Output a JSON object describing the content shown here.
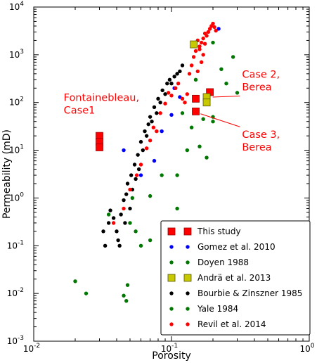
{
  "chart_data": {
    "type": "scatter",
    "xscale": "log",
    "yscale": "log",
    "xlim": [
      0.01,
      1
    ],
    "ylim": [
      0.001,
      10000
    ],
    "xlabel": "Porosity",
    "ylabel": "Permeability (mD)",
    "grid": false,
    "legend_position": "lower-right",
    "x_ticks": [
      {
        "value": 0.01,
        "label": "10",
        "exp": "-2"
      },
      {
        "value": 0.1,
        "label": "10",
        "exp": "-1"
      },
      {
        "value": 1,
        "label": "10",
        "exp": "0"
      }
    ],
    "y_ticks": [
      {
        "value": 0.001,
        "label": "10",
        "exp": "-3"
      },
      {
        "value": 0.01,
        "label": "10",
        "exp": "-2"
      },
      {
        "value": 0.1,
        "label": "10",
        "exp": "-1"
      },
      {
        "value": 1,
        "label": "10",
        "exp": "0"
      },
      {
        "value": 10,
        "label": "10",
        "exp": "1"
      },
      {
        "value": 100,
        "label": "10",
        "exp": "2"
      },
      {
        "value": 1000,
        "label": "10",
        "exp": "3"
      },
      {
        "value": 10000,
        "label": "10",
        "exp": "4"
      }
    ],
    "annotations": [
      {
        "lines": [
          "Fontainebleau,",
          "Case1"
        ],
        "color": "#ff0000",
        "anchor_x": 0.0165,
        "anchor_y": 108
      },
      {
        "lines": [
          "Case 2,",
          "Berea"
        ],
        "color": "#ff0000",
        "anchor_x": 0.325,
        "anchor_y": 330,
        "arrow_to": [
          0.19,
          130
        ]
      },
      {
        "lines": [
          "Case 3,",
          "Berea"
        ],
        "color": "#ff0000",
        "anchor_x": 0.325,
        "anchor_y": 18,
        "arrow_to": [
          0.155,
          58
        ]
      }
    ],
    "series": [
      {
        "name": "This study",
        "marker": "square",
        "color": "#ff0000",
        "edge": "#990000",
        "points": [
          [
            0.03,
            20
          ],
          [
            0.03,
            15
          ],
          [
            0.03,
            11.5
          ],
          [
            0.15,
            120
          ],
          [
            0.15,
            65
          ],
          [
            0.19,
            165
          ]
        ]
      },
      {
        "name": "Gomez et al. 2010",
        "marker": "dot",
        "color": "#0000ff",
        "points": [
          [
            0.22,
            3500
          ],
          [
            0.105,
            200
          ],
          [
            0.1,
            55
          ],
          [
            0.085,
            25
          ],
          [
            0.075,
            6
          ],
          [
            0.06,
            3
          ],
          [
            0.045,
            10
          ],
          [
            0.115,
            130
          ]
        ]
      },
      {
        "name": "Doyen 1988",
        "marker": "dot",
        "color": "#007700",
        "points": [
          [
            0.2,
            1800
          ],
          [
            0.23,
            500
          ],
          [
            0.28,
            900
          ],
          [
            0.25,
            250
          ],
          [
            0.3,
            160
          ],
          [
            0.15,
            300
          ],
          [
            0.12,
            60
          ],
          [
            0.14,
            30
          ],
          [
            0.13,
            10
          ],
          [
            0.16,
            12
          ],
          [
            0.18,
            7
          ],
          [
            0.2,
            40
          ],
          [
            0.2,
            50
          ],
          [
            0.17,
            45
          ],
          [
            0.11,
            3
          ],
          [
            0.085,
            3
          ],
          [
            0.09,
            0.3
          ],
          [
            0.07,
            0.13
          ]
        ]
      },
      {
        "name": "Andrä et al. 2013",
        "marker": "square",
        "color": "#c8c800",
        "edge": "#555500",
        "points": [
          [
            0.145,
            1650
          ],
          [
            0.18,
            130
          ],
          [
            0.18,
            100
          ]
        ]
      },
      {
        "name": "Bourbie & Zinszner 1985",
        "marker": "dot",
        "color": "#000000",
        "points": [
          [
            0.032,
            0.2
          ],
          [
            0.033,
            0.1
          ],
          [
            0.035,
            0.3
          ],
          [
            0.036,
            0.55
          ],
          [
            0.038,
            0.38
          ],
          [
            0.04,
            0.2
          ],
          [
            0.041,
            0.13
          ],
          [
            0.042,
            0.1
          ],
          [
            0.043,
            0.45
          ],
          [
            0.045,
            0.9
          ],
          [
            0.046,
            0.3
          ],
          [
            0.047,
            1.2
          ],
          [
            0.048,
            2
          ],
          [
            0.05,
            0.6
          ],
          [
            0.051,
            3
          ],
          [
            0.052,
            1.5
          ],
          [
            0.054,
            5
          ],
          [
            0.055,
            2.5
          ],
          [
            0.057,
            8
          ],
          [
            0.058,
            4
          ],
          [
            0.06,
            15
          ],
          [
            0.062,
            10
          ],
          [
            0.064,
            25
          ],
          [
            0.066,
            20
          ],
          [
            0.068,
            35
          ],
          [
            0.07,
            50
          ],
          [
            0.072,
            40
          ],
          [
            0.075,
            80
          ],
          [
            0.078,
            60
          ],
          [
            0.08,
            120
          ],
          [
            0.083,
            100
          ],
          [
            0.086,
            180
          ],
          [
            0.09,
            150
          ],
          [
            0.093,
            250
          ],
          [
            0.097,
            300
          ],
          [
            0.1,
            250
          ],
          [
            0.105,
            350
          ],
          [
            0.11,
            400
          ],
          [
            0.115,
            450
          ],
          [
            0.12,
            600
          ]
        ]
      },
      {
        "name": "Yale 1984",
        "marker": "dot",
        "color": "#007700",
        "points": [
          [
            0.02,
            0.018
          ],
          [
            0.024,
            0.01
          ],
          [
            0.045,
            0.009
          ],
          [
            0.047,
            0.007
          ],
          [
            0.048,
            0.015
          ],
          [
            0.05,
            0.3
          ],
          [
            0.06,
            0.1
          ],
          [
            0.055,
            0.2
          ],
          [
            0.052,
            1
          ],
          [
            0.07,
            1.1
          ],
          [
            0.09,
            0.2
          ],
          [
            0.12,
            0.013
          ],
          [
            0.035,
            0.45
          ],
          [
            0.11,
            0.6
          ]
        ]
      },
      {
        "name": "Revil et al. 2014",
        "marker": "dot",
        "color": "#ff0000",
        "points": [
          [
            0.038,
            0.3
          ],
          [
            0.045,
            0.6
          ],
          [
            0.05,
            1.5
          ],
          [
            0.056,
            3
          ],
          [
            0.06,
            5
          ],
          [
            0.066,
            11
          ],
          [
            0.07,
            16
          ],
          [
            0.074,
            30
          ],
          [
            0.078,
            25
          ],
          [
            0.083,
            60
          ],
          [
            0.09,
            95
          ],
          [
            0.095,
            160
          ],
          [
            0.1,
            140
          ],
          [
            0.107,
            200
          ],
          [
            0.112,
            250
          ],
          [
            0.12,
            120
          ],
          [
            0.125,
            100
          ],
          [
            0.13,
            150
          ],
          [
            0.135,
            400
          ],
          [
            0.14,
            600
          ],
          [
            0.145,
            900
          ],
          [
            0.15,
            1200
          ],
          [
            0.155,
            2000
          ],
          [
            0.16,
            1500
          ],
          [
            0.165,
            1800
          ],
          [
            0.17,
            2200
          ],
          [
            0.175,
            2800
          ],
          [
            0.18,
            2500
          ],
          [
            0.185,
            3000
          ],
          [
            0.19,
            3500
          ],
          [
            0.195,
            4000
          ],
          [
            0.2,
            4500
          ],
          [
            0.205,
            3800
          ],
          [
            0.21,
            3200
          ],
          [
            0.17,
            1000
          ],
          [
            0.165,
            700
          ],
          [
            0.155,
            450
          ],
          [
            0.16,
            1300
          ],
          [
            0.175,
            1700
          ]
        ]
      }
    ]
  }
}
